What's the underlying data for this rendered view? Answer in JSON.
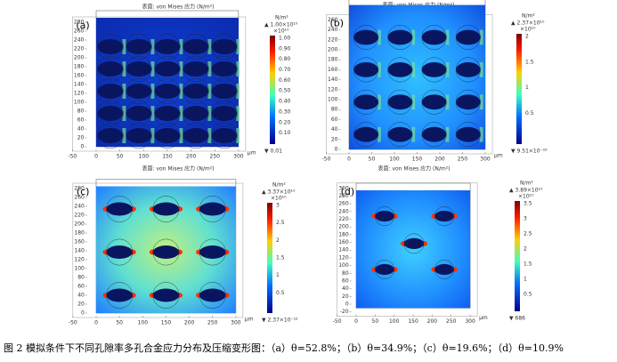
{
  "caption": "图 2 模拟条件下不同孔隙率多孔合金应力分布及压缩变形图：（a）θ=52.8%；（b）θ=34.9%；（c）θ=19.6%；（d）θ=10.9%",
  "panels": [
    {
      "label": "(a)",
      "title": "表面: von Mises 应力 (N/m²)",
      "axis_unit": "μm",
      "xticks": [
        -50,
        0,
        50,
        100,
        150,
        200,
        250,
        300
      ],
      "yticks": [
        0,
        20,
        40,
        60,
        80,
        100,
        120,
        140,
        160,
        180,
        200,
        220,
        240,
        260,
        280
      ],
      "colorbar": {
        "unit": "N/m²",
        "max": "▲ 1.00×10¹⁰",
        "exponent": "×10¹⁰",
        "ticks": [
          "1.00",
          "0.90",
          "0.80",
          "0.70",
          "0.60",
          "0.50",
          "0.40",
          "0.30",
          "0.20",
          "0.10"
        ],
        "min": "▼ 0.01"
      }
    },
    {
      "label": "(b)",
      "title": "表面: von Mises 应力 (N/m²)",
      "axis_unit": "μm",
      "xticks": [
        -50,
        0,
        50,
        100,
        150,
        200,
        250,
        300
      ],
      "yticks": [
        0,
        20,
        40,
        60,
        80,
        100,
        120,
        140,
        160,
        180,
        200,
        220,
        240,
        260
      ],
      "colorbar": {
        "unit": "N/m²",
        "max": "▲ 2.37×10¹⁰",
        "exponent": "×10¹⁰",
        "ticks": [
          2,
          1.5,
          1,
          0.5
        ],
        "min": "▼ 9.51×10⁻¹⁶"
      }
    },
    {
      "label": "(c)",
      "title": "表面: von Mises 应力 (N/m²)",
      "axis_unit": "μm",
      "xticks": [
        -50,
        0,
        50,
        100,
        150,
        200,
        250,
        300
      ],
      "yticks": [
        0,
        20,
        40,
        60,
        80,
        100,
        120,
        140,
        160,
        180,
        200,
        220,
        240,
        260,
        280
      ],
      "colorbar": {
        "unit": "N/m²",
        "max": "▲ 3.37×10¹⁰",
        "exponent": "×10¹⁰",
        "ticks": [
          3,
          2.5,
          2,
          1.5,
          1,
          0.5
        ],
        "min": "▼ 2.37×10⁻¹²"
      }
    },
    {
      "label": "(d)",
      "title": "表面: von Mises 应力 (N/m²)",
      "axis_unit": "μm",
      "xticks": [
        -50,
        0,
        50,
        100,
        150,
        200,
        250,
        300
      ],
      "yticks": [
        -20,
        0,
        20,
        40,
        60,
        80,
        100,
        120,
        140,
        160,
        180,
        200,
        220,
        240,
        260,
        280,
        300
      ],
      "colorbar": {
        "unit": "N/m²",
        "max": "▲ 3.89×10¹⁰",
        "exponent": "×10¹⁰",
        "ticks": [
          3.5,
          3,
          2.5,
          2,
          1.5,
          1,
          0.5
        ],
        "min": "▼ 686"
      }
    }
  ]
}
